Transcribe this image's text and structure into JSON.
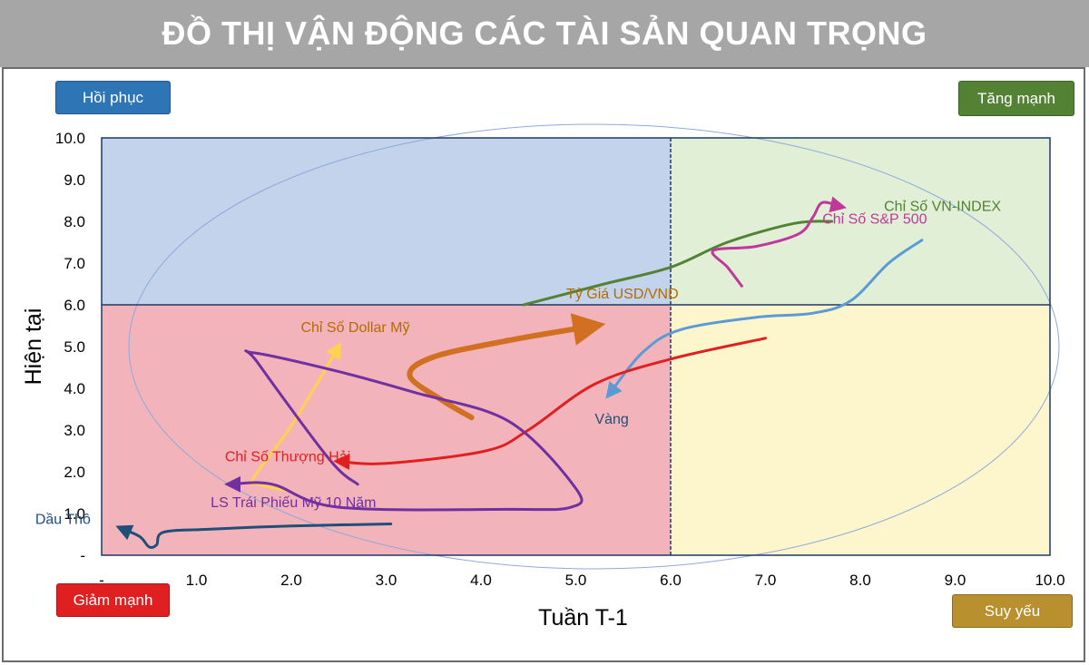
{
  "header": {
    "title": "ĐỒ THỊ VẬN ĐỘNG CÁC TÀI SẢN QUAN TRỌNG"
  },
  "quadrants": {
    "top_left": {
      "label": "Hồi phục",
      "color": "#2e75b6"
    },
    "top_right": {
      "label": "Tăng mạnh",
      "color": "#548235"
    },
    "bottom_left": {
      "label": "Giảm mạnh",
      "color": "#e02020"
    },
    "bottom_right": {
      "label": "Suy yếu",
      "color": "#b8902e"
    }
  },
  "chart_data": {
    "type": "line",
    "xlabel": "Tuần T-1",
    "ylabel": "Hiện tại",
    "xlim": [
      0,
      10
    ],
    "ylim": [
      0,
      10
    ],
    "x_ticks": [
      "-",
      "1.0",
      "2.0",
      "3.0",
      "4.0",
      "5.0",
      "6.0",
      "7.0",
      "8.0",
      "9.0",
      "10.0"
    ],
    "y_ticks": [
      "-",
      "1.0",
      "2.0",
      "3.0",
      "4.0",
      "5.0",
      "6.0",
      "7.0",
      "8.0",
      "9.0",
      "10.0"
    ],
    "quadrant_split": {
      "x": 6,
      "y": 6
    },
    "series": [
      {
        "name": "Chỉ Số VN-INDEX",
        "color": "#548235",
        "arrow": false,
        "points": [
          [
            4.45,
            6.0
          ],
          [
            5.3,
            6.5
          ],
          [
            6.0,
            6.9
          ],
          [
            6.6,
            7.5
          ],
          [
            7.3,
            7.95
          ],
          [
            7.7,
            8.0
          ]
        ]
      },
      {
        "name": "Chỉ Số S&P 500",
        "color": "#c0399a",
        "arrow": true,
        "points": [
          [
            6.75,
            6.45
          ],
          [
            6.6,
            6.9
          ],
          [
            6.45,
            7.3
          ],
          [
            6.9,
            7.4
          ],
          [
            7.35,
            7.7
          ],
          [
            7.5,
            8.1
          ],
          [
            7.6,
            8.45
          ],
          [
            7.8,
            8.35
          ]
        ]
      },
      {
        "name": "Tỷ Giá USD/VND",
        "color": "#d07020",
        "arrow": true,
        "thick": true,
        "points": [
          [
            3.9,
            3.3
          ],
          [
            3.6,
            3.7
          ],
          [
            3.25,
            4.3
          ],
          [
            3.5,
            4.75
          ],
          [
            4.3,
            5.15
          ],
          [
            5.2,
            5.5
          ]
        ]
      },
      {
        "name": "Vàng",
        "color": "#5b9bd5",
        "arrow": true,
        "points": [
          [
            8.65,
            7.55
          ],
          [
            8.3,
            7.0
          ],
          [
            7.9,
            6.1
          ],
          [
            7.5,
            5.8
          ],
          [
            6.9,
            5.7
          ],
          [
            6.1,
            5.4
          ],
          [
            5.7,
            4.85
          ],
          [
            5.35,
            3.85
          ]
        ]
      },
      {
        "name": "Chỉ Số Thượng Hải",
        "color": "#e02020",
        "arrow": true,
        "points": [
          [
            7.0,
            5.2
          ],
          [
            6.0,
            4.7
          ],
          [
            5.2,
            4.1
          ],
          [
            4.5,
            3.0
          ],
          [
            4.05,
            2.5
          ],
          [
            3.0,
            2.2
          ],
          [
            2.5,
            2.25
          ]
        ]
      },
      {
        "name": "Chỉ Số Dollar Mỹ",
        "color": "#ffd24d",
        "arrow": true,
        "points": [
          [
            1.95,
            1.55
          ],
          [
            1.65,
            1.7
          ],
          [
            1.6,
            1.85
          ],
          [
            2.0,
            3.1
          ],
          [
            2.5,
            5.0
          ]
        ]
      },
      {
        "name": "LS Trái Phiếu Mỹ 10 Năm",
        "color": "#7030a0",
        "arrow": true,
        "points": [
          [
            2.7,
            1.7
          ],
          [
            2.4,
            2.3
          ],
          [
            1.65,
            4.6
          ],
          [
            1.6,
            4.85
          ],
          [
            2.5,
            4.4
          ],
          [
            3.3,
            3.9
          ],
          [
            4.3,
            3.2
          ],
          [
            5.0,
            1.6
          ],
          [
            4.95,
            1.15
          ],
          [
            4.3,
            1.1
          ],
          [
            2.5,
            1.15
          ],
          [
            1.8,
            1.7
          ],
          [
            1.35,
            1.7
          ]
        ]
      },
      {
        "name": "Dầu Thô",
        "color": "#1f4e79",
        "arrow": true,
        "points": [
          [
            3.05,
            0.75
          ],
          [
            2.0,
            0.7
          ],
          [
            1.1,
            0.62
          ],
          [
            0.65,
            0.55
          ],
          [
            0.58,
            0.25
          ],
          [
            0.5,
            0.2
          ],
          [
            0.4,
            0.45
          ],
          [
            0.2,
            0.65
          ]
        ]
      }
    ],
    "series_labels": [
      {
        "text": "Chỉ Số VN-INDEX",
        "x": 8.25,
        "y": 8.25,
        "color": "#548235"
      },
      {
        "text": "Chỉ Số S&P 500",
        "x": 7.6,
        "y": 7.95,
        "color": "#c0399a"
      },
      {
        "text": "Tỷ Giá USD/VND",
        "x": 4.9,
        "y": 6.15,
        "color": "#b36b00"
      },
      {
        "text": "Vàng",
        "x": 5.2,
        "y": 3.15,
        "color": "#1f4e79"
      },
      {
        "text": "Chỉ Số Thượng Hải",
        "x": 1.3,
        "y": 2.25,
        "color": "#e02020"
      },
      {
        "text": "Chỉ Số Dollar Mỹ",
        "x": 2.1,
        "y": 5.35,
        "color": "#b36b00"
      },
      {
        "text": "LS Trái Phiếu Mỹ 10 Năm",
        "x": 1.15,
        "y": 1.15,
        "color": "#7030a0"
      },
      {
        "text": "Dầu Thô",
        "x": -0.7,
        "y": 0.75,
        "color": "#1f4e79"
      }
    ],
    "quadrant_colors": {
      "top_left": "#c4d3ec",
      "top_right": "#e1efd7",
      "bottom_left": "#f2b4ba",
      "bottom_right": "#fdf5cc"
    }
  }
}
